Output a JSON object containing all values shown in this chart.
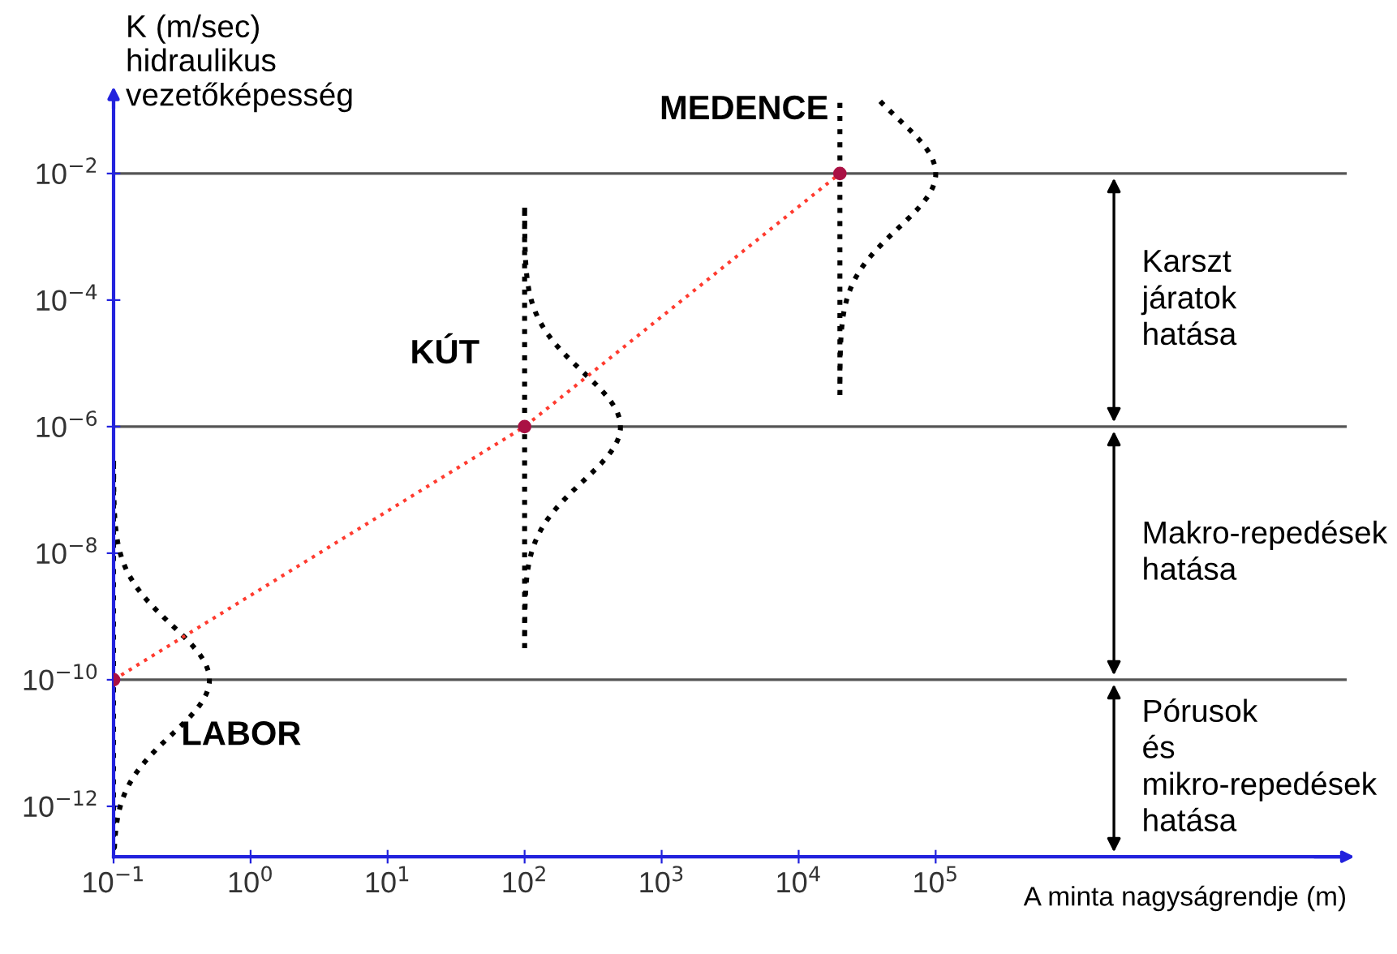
{
  "chart_data": {
    "type": "line",
    "ylabel": "K (m/sec)\nhidraulikus\nvezetőképesség",
    "xlabel": "A minta nagyságrendje (m)",
    "x": [
      0.1,
      100,
      20000
    ],
    "series": [
      {
        "color": "#ff3b2f",
        "values": [
          1e-10,
          1e-06,
          0.01
        ]
      }
    ],
    "marker": "circle",
    "line_style": "dotted",
    "log": "xy",
    "xlim": [
      0.1,
      100000000.0
    ],
    "ylim": [
      1.6e-13,
      0.16
    ],
    "xticks": [
      {
        "value": 0.1,
        "label": "10$^{−1}$"
      },
      {
        "value": 1,
        "label": "10$^{0}$"
      },
      {
        "value": 10,
        "label": "10$^{1}$"
      },
      {
        "value": 100,
        "label": "10$^{2}$"
      },
      {
        "value": 1000,
        "label": "10$^{3}$"
      },
      {
        "value": 10000,
        "label": "10$^{4}$"
      },
      {
        "value": 100000,
        "label": "10$^{5}$"
      }
    ],
    "yticks": [
      {
        "value": 1e-12,
        "label": "10$^{−12}$"
      },
      {
        "value": 1e-10,
        "label": "10$^{−10}$"
      },
      {
        "value": 1e-08,
        "label": "10$^{−8}$"
      },
      {
        "value": 1e-06,
        "label": "10$^{−6}$"
      },
      {
        "value": 0.0001,
        "label": "10$^{−4}$"
      },
      {
        "value": 0.01,
        "label": "10$^{−2}$"
      }
    ],
    "ref_lines": [
      {
        "axis": "y",
        "value": 1e-10,
        "color": "#555555"
      },
      {
        "axis": "y",
        "value": 1e-06,
        "color": "#555555"
      },
      {
        "axis": "y",
        "value": 0.01,
        "color": "#555555"
      }
    ],
    "annotations": [
      "LABOR",
      "KÚT",
      "MEDENCE",
      "Karszt\njáratok\nhatása",
      "Makro-repedések\nhatása",
      "Pórusok\nés\nmikro-repedések\nhatása"
    ],
    "grid": false,
    "legend": false
  }
}
